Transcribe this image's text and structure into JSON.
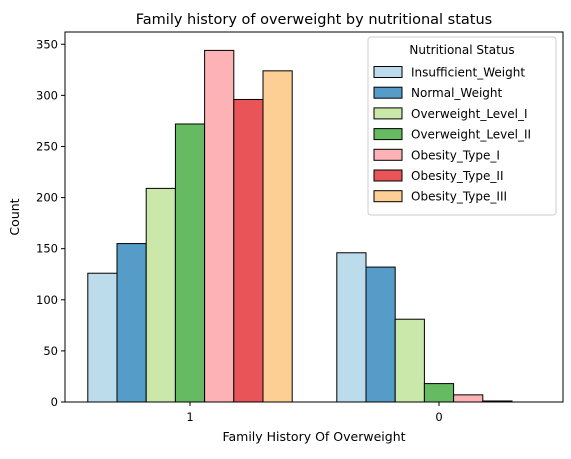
{
  "chart_data": {
    "type": "bar",
    "title": "Family history of overweight by nutritional status",
    "xlabel": "Family History Of Overweight",
    "ylabel": "Count",
    "categories": [
      "1",
      "0"
    ],
    "ylim": [
      0,
      362
    ],
    "yticks": [
      0,
      50,
      100,
      150,
      200,
      250,
      300,
      350
    ],
    "grid": false,
    "legend": {
      "title": "Nutritional Status",
      "placement": "top-right"
    },
    "series": [
      {
        "name": "Insufficient_Weight",
        "color": "#bcdbeb",
        "values": [
          126,
          146
        ]
      },
      {
        "name": "Normal_Weight",
        "color": "#559cc8",
        "values": [
          155,
          132
        ]
      },
      {
        "name": "Overweight_Level_I",
        "color": "#c9e8a9",
        "values": [
          209,
          81
        ]
      },
      {
        "name": "Overweight_Level_II",
        "color": "#66bb62",
        "values": [
          272,
          18
        ]
      },
      {
        "name": "Obesity_Type_I",
        "color": "#fdb3b5",
        "values": [
          344,
          7
        ]
      },
      {
        "name": "Obesity_Type_II",
        "color": "#e85458",
        "values": [
          296,
          1
        ]
      },
      {
        "name": "Obesity_Type_III",
        "color": "#fecf95",
        "values": [
          324,
          0
        ]
      }
    ]
  }
}
